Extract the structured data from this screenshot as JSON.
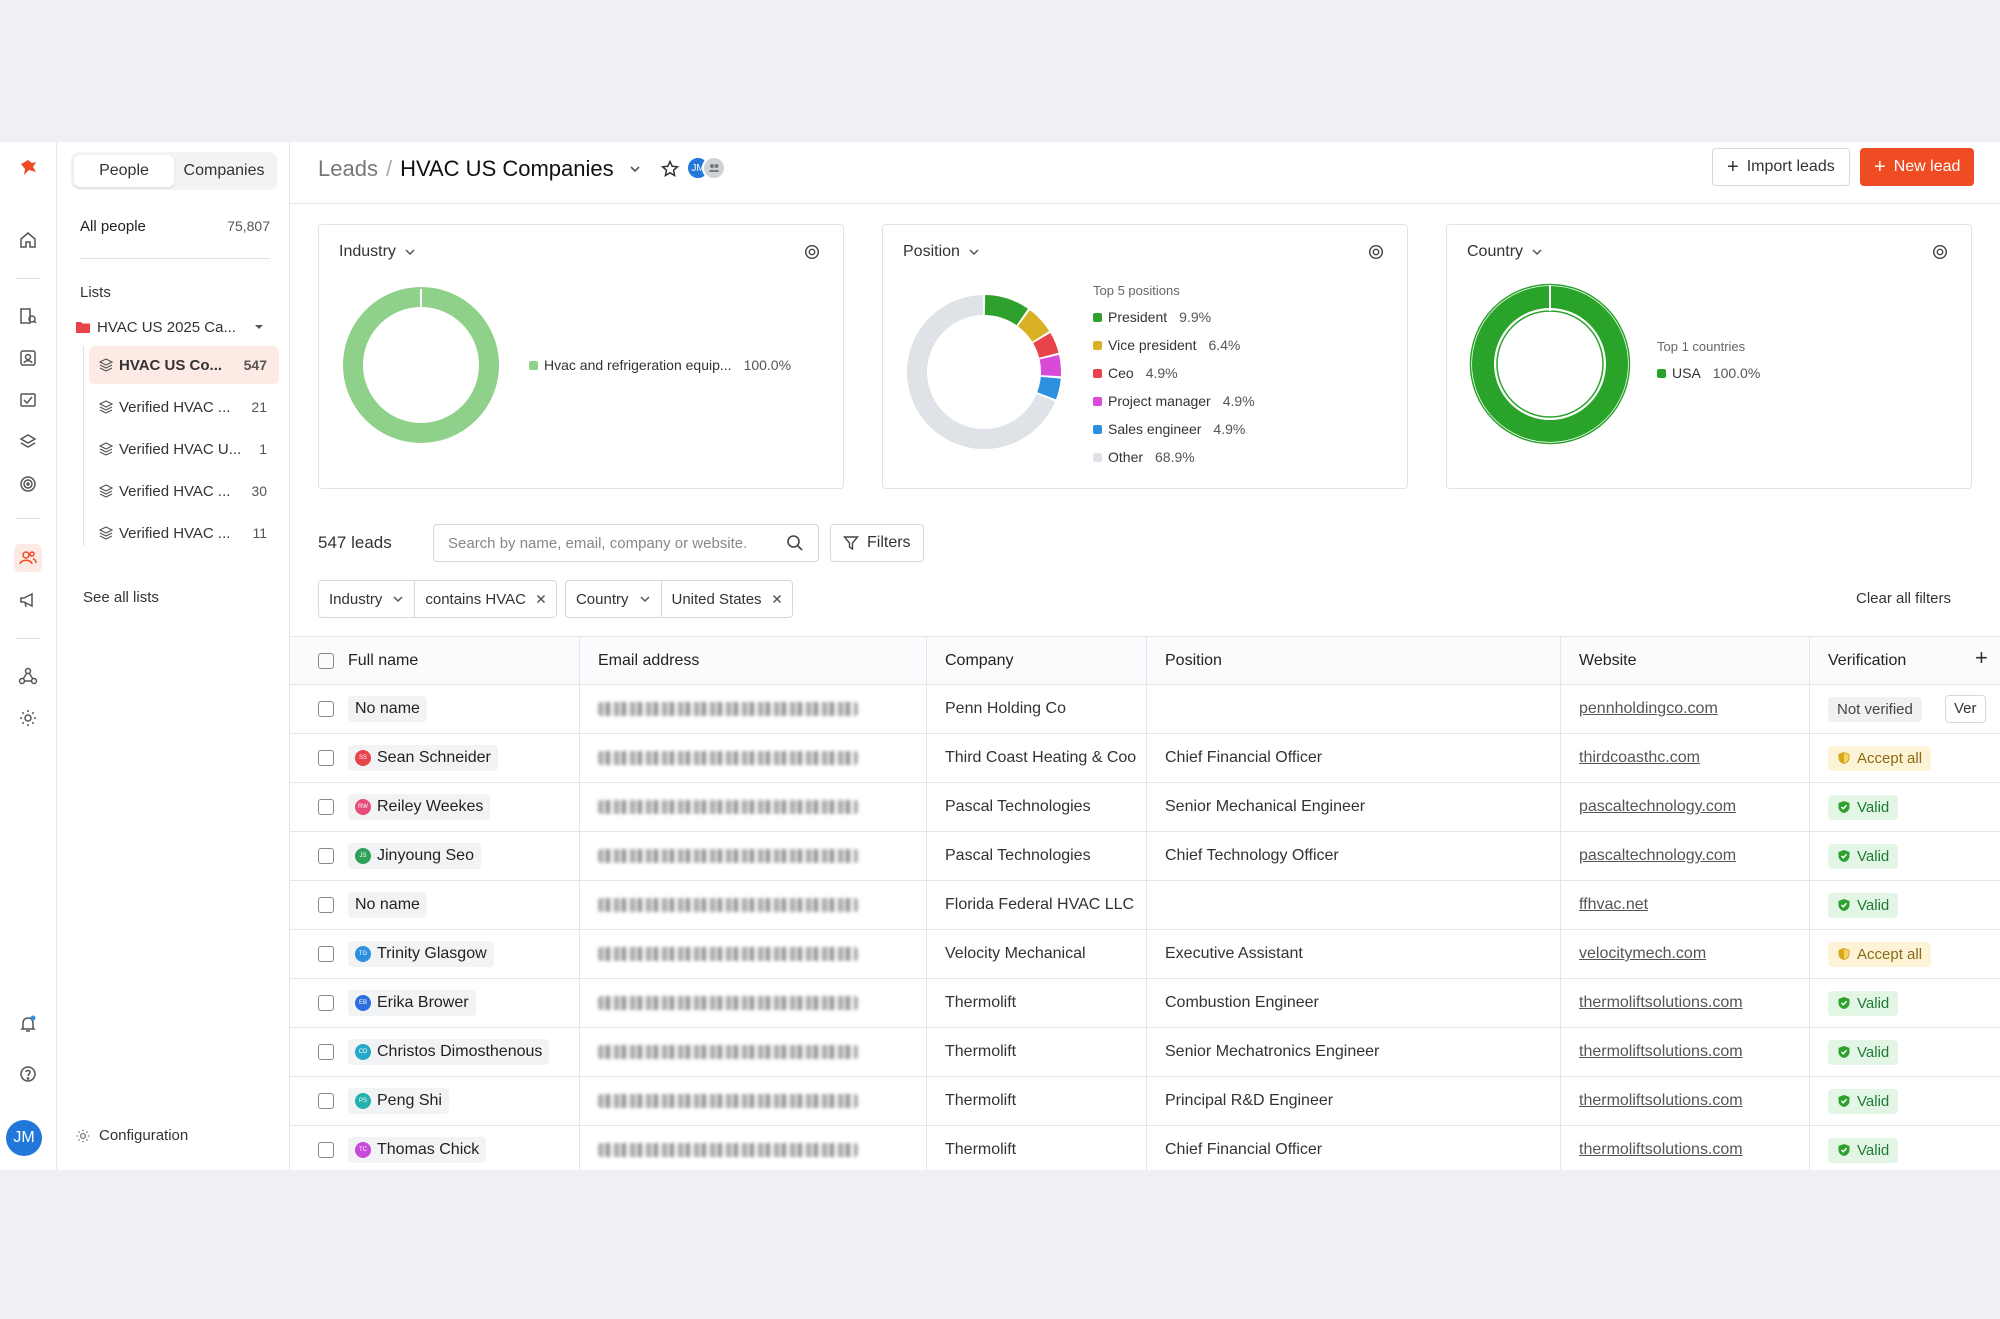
{
  "breadcrumb": {
    "root": "Leads",
    "separator": "/",
    "title": "HVAC US Companies"
  },
  "header": {
    "avatar_initials": "JM",
    "import_label": "Import leads",
    "new_label": "New lead"
  },
  "rail": {
    "user_initials": "JM"
  },
  "sidebar": {
    "tabs": [
      "People",
      "Companies"
    ],
    "active_tab": "People",
    "all_people": {
      "label": "All people",
      "count": "75,807"
    },
    "lists_heading": "Lists",
    "folder": {
      "label": "HVAC US 2025 Ca..."
    },
    "lists": [
      {
        "label": "HVAC US Co...",
        "count": "547",
        "active": true
      },
      {
        "label": "Verified HVAC ...",
        "count": "21"
      },
      {
        "label": "Verified HVAC U...",
        "count": "1"
      },
      {
        "label": "Verified HVAC ...",
        "count": "30"
      },
      {
        "label": "Verified HVAC ...",
        "count": "11"
      }
    ],
    "see_all": "See all lists",
    "configuration": "Configuration"
  },
  "cards": {
    "industry": {
      "title": "Industry",
      "legend": [
        {
          "label": "Hvac and refrigeration equip...",
          "pct": "100.0%",
          "color": "#8fd18a"
        }
      ]
    },
    "position": {
      "title": "Position",
      "heading": "Top 5 positions",
      "legend": [
        {
          "label": "President",
          "pct": "9.9%",
          "color": "#2ea02e"
        },
        {
          "label": "Vice president",
          "pct": "6.4%",
          "color": "#d8b124"
        },
        {
          "label": "Ceo",
          "pct": "4.9%",
          "color": "#e8434a"
        },
        {
          "label": "Project manager",
          "pct": "4.9%",
          "color": "#d84ad8"
        },
        {
          "label": "Sales engineer",
          "pct": "4.9%",
          "color": "#2d8fe0"
        },
        {
          "label": "Other",
          "pct": "68.9%",
          "color": "#dfe2e6"
        }
      ]
    },
    "country": {
      "title": "Country",
      "heading": "Top 1 countries",
      "legend": [
        {
          "label": "USA",
          "pct": "100.0%",
          "color": "#2aa32a"
        }
      ]
    }
  },
  "chart_data": [
    {
      "type": "pie",
      "title": "Industry",
      "categories": [
        "Hvac and refrigeration equip..."
      ],
      "values": [
        100.0
      ]
    },
    {
      "type": "pie",
      "title": "Position",
      "categories": [
        "President",
        "Vice president",
        "Ceo",
        "Project manager",
        "Sales engineer",
        "Other"
      ],
      "values": [
        9.9,
        6.4,
        4.9,
        4.9,
        4.9,
        68.9
      ]
    },
    {
      "type": "pie",
      "title": "Country",
      "categories": [
        "USA"
      ],
      "values": [
        100.0
      ]
    }
  ],
  "toolbar": {
    "count_label": "547 leads",
    "search_placeholder": "Search by name, email, company or website.",
    "filters_label": "Filters",
    "clear_all": "Clear all filters"
  },
  "filters": [
    {
      "field": "Industry",
      "value": "contains HVAC"
    },
    {
      "field": "Country",
      "value": "United States"
    }
  ],
  "table": {
    "headers": [
      "Full name",
      "Email address",
      "Company",
      "Position",
      "Website",
      "Verification"
    ],
    "rows": [
      {
        "name": "No name",
        "company": "Penn Holding Co",
        "position": "",
        "website": "pennholdingco.com",
        "verification": "Not verified",
        "status": "not",
        "extra": "Ver"
      },
      {
        "name": "Sean Schneider",
        "initials": "SS",
        "avatar": "#e8434a",
        "company": "Third Coast Heating & Coo",
        "position": "Chief Financial Officer",
        "website": "thirdcoasthc.com",
        "verification": "Accept all",
        "status": "accept"
      },
      {
        "name": "Reiley Weekes",
        "initials": "RW",
        "avatar": "#e84a7a",
        "company": "Pascal Technologies",
        "position": "Senior Mechanical Engineer",
        "website": "pascaltechnology.com",
        "verification": "Valid",
        "status": "valid"
      },
      {
        "name": "Jinyoung Seo",
        "initials": "JS",
        "avatar": "#2ea05a",
        "company": "Pascal Technologies",
        "position": "Chief Technology Officer",
        "website": "pascaltechnology.com",
        "verification": "Valid",
        "status": "valid"
      },
      {
        "name": "No name",
        "company": "Florida Federal HVAC LLC",
        "position": "",
        "website": "ffhvac.net",
        "verification": "Valid",
        "status": "valid"
      },
      {
        "name": "Trinity Glasgow",
        "initials": "TG",
        "avatar": "#2d8fe0",
        "company": "Velocity Mechanical",
        "position": "Executive Assistant",
        "website": "velocitymech.com",
        "verification": "Accept all",
        "status": "accept"
      },
      {
        "name": "Erika Brower",
        "initials": "EB",
        "avatar": "#2d6fe0",
        "company": "Thermolift",
        "position": "Combustion Engineer",
        "website": "thermoliftsolutions.com",
        "verification": "Valid",
        "status": "valid"
      },
      {
        "name": "Christos Dimosthenous",
        "initials": "CD",
        "avatar": "#28a8c8",
        "company": "Thermolift",
        "position": "Senior Mechatronics Engineer",
        "website": "thermoliftsolutions.com",
        "verification": "Valid",
        "status": "valid"
      },
      {
        "name": "Peng Shi",
        "initials": "PS",
        "avatar": "#22b0b0",
        "company": "Thermolift",
        "position": "Principal R&D Engineer",
        "website": "thermoliftsolutions.com",
        "verification": "Valid",
        "status": "valid"
      },
      {
        "name": "Thomas Chick",
        "initials": "TC",
        "avatar": "#c84ad8",
        "company": "Thermolift",
        "position": "Chief Financial Officer",
        "website": "thermoliftsolutions.com",
        "verification": "Valid",
        "status": "valid"
      }
    ]
  }
}
